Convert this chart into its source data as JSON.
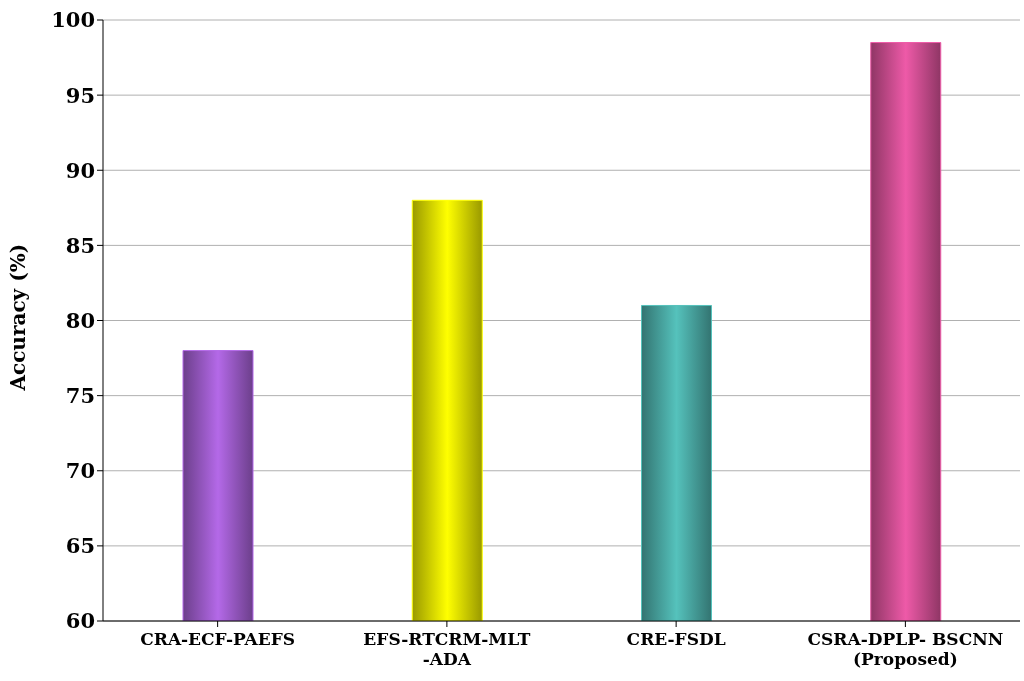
{
  "chart_data": {
    "type": "bar",
    "ylabel": "Accuracy (%)",
    "categories": [
      "CRA-ECF-PAEFS",
      "EFS-RTCRM-MLT\n-ADA",
      "CRE-FSDL",
      "CSRA-DPLP- BSCNN\n(Proposed)"
    ],
    "values": [
      78,
      88,
      81,
      98.5
    ],
    "colors": [
      "#b469e8",
      "#ffff00",
      "#55c2bc",
      "#ee5aa8"
    ],
    "ylim": [
      60,
      100
    ],
    "yticks": [
      60,
      65,
      70,
      75,
      80,
      85,
      90,
      95,
      100
    ],
    "grid": "y"
  }
}
